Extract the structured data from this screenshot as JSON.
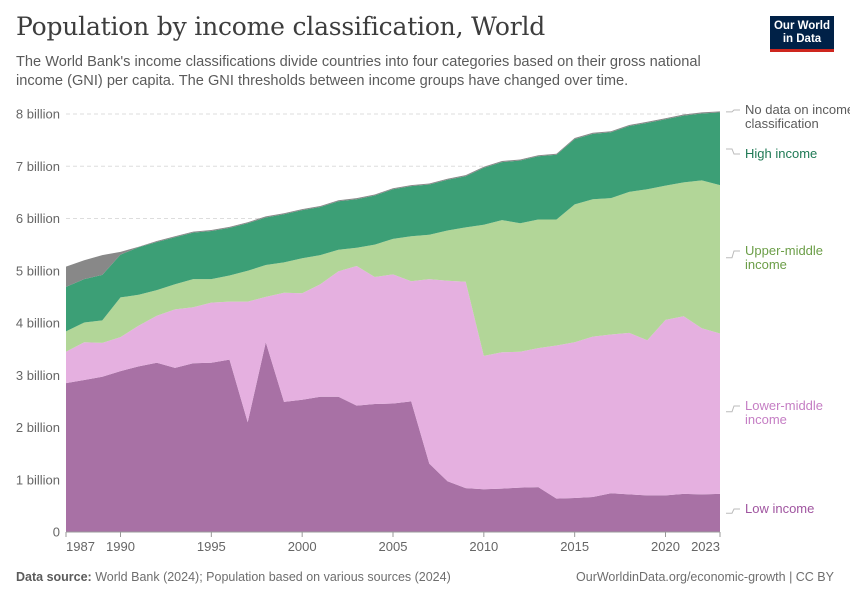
{
  "header": {
    "title": "Population by income classification, World",
    "subtitle": "The World Bank's income classifications divide countries into four categories based on their gross national income (GNI) per capita. The GNI thresholds between income groups have changed over time.",
    "logo_line1": "Our World",
    "logo_line2": "in Data"
  },
  "footer": {
    "source_label": "Data source:",
    "source_text": "World Bank (2024); Population based on various sources (2024)",
    "url": "OurWorldinData.org/economic-growth | CC BY"
  },
  "colors": {
    "low": "#a871a5",
    "lower_middle": "#e5b0e0",
    "upper_middle": "#b2d698",
    "high": "#3c9f76",
    "no_data": "#888888",
    "low_label": "#a055a0",
    "lower_middle_label": "#c57ec4",
    "upper_middle_label": "#6c9e48",
    "high_label": "#1f7a55",
    "no_data_label": "#5b5b5b"
  },
  "chart_data": {
    "type": "area",
    "stacked": true,
    "title": "Population by income classification, World",
    "ylabel": "",
    "xlabel": "",
    "x": [
      1987,
      1988,
      1989,
      1990,
      1991,
      1992,
      1993,
      1994,
      1995,
      1996,
      1997,
      1998,
      1999,
      2000,
      2001,
      2002,
      2003,
      2004,
      2005,
      2006,
      2007,
      2008,
      2009,
      2010,
      2011,
      2012,
      2013,
      2014,
      2015,
      2016,
      2017,
      2018,
      2019,
      2020,
      2021,
      2022,
      2023
    ],
    "xlim": [
      1987,
      2023
    ],
    "ylim": [
      0,
      8000000000
    ],
    "y_ticks": [
      0,
      1000000000,
      2000000000,
      3000000000,
      4000000000,
      5000000000,
      6000000000,
      7000000000,
      8000000000
    ],
    "y_tick_labels": [
      "0",
      "1 billion",
      "2 billion",
      "3 billion",
      "4 billion",
      "5 billion",
      "6 billion",
      "7 billion",
      "8 billion"
    ],
    "x_tick_labels": [
      "1987",
      "1990",
      "1995",
      "2000",
      "2005",
      "2010",
      "2015",
      "2020",
      "2023"
    ],
    "x_ticks": [
      1987,
      1990,
      1995,
      2000,
      2005,
      2010,
      2015,
      2020,
      2023
    ],
    "grid": true,
    "series": [
      {
        "name": "Low income",
        "color_key": "low",
        "values": [
          2850000000.0,
          2910000000.0,
          2970000000.0,
          3080000000.0,
          3170000000.0,
          3240000000.0,
          3140000000.0,
          3230000000.0,
          3240000000.0,
          3300000000.0,
          2100000000.0,
          3630000000.0,
          2490000000.0,
          2530000000.0,
          2590000000.0,
          2590000000.0,
          2420000000.0,
          2450000000.0,
          2460000000.0,
          2500000000.0,
          1310000000.0,
          970000000.0,
          840000000.0,
          820000000.0,
          830000000.0,
          850000000.0,
          860000000.0,
          640000000.0,
          650000000.0,
          670000000.0,
          740000000.0,
          720000000.0,
          700000000.0,
          700000000.0,
          730000000.0,
          720000000.0,
          730000000.0
        ]
      },
      {
        "name": "Lower-middle income",
        "color_key": "lower_middle",
        "values": [
          600000000.0,
          720000000.0,
          650000000.0,
          650000000.0,
          780000000.0,
          900000000.0,
          1120000000.0,
          1070000000.0,
          1150000000.0,
          1110000000.0,
          2310000000.0,
          870000000.0,
          2090000000.0,
          2040000000.0,
          2150000000.0,
          2400000000.0,
          2670000000.0,
          2430000000.0,
          2470000000.0,
          2300000000.0,
          3530000000.0,
          3840000000.0,
          3950000000.0,
          2550000000.0,
          2610000000.0,
          2600000000.0,
          2660000000.0,
          2930000000.0,
          2980000000.0,
          3070000000.0,
          3040000000.0,
          3090000000.0,
          2970000000.0,
          3360000000.0,
          3400000000.0,
          3180000000.0,
          3070000000.0
        ]
      },
      {
        "name": "Upper-middle income",
        "color_key": "upper_middle",
        "values": [
          390000000.0,
          380000000.0,
          430000000.0,
          760000000.0,
          590000000.0,
          490000000.0,
          480000000.0,
          540000000.0,
          450000000.0,
          500000000.0,
          590000000.0,
          610000000.0,
          580000000.0,
          670000000.0,
          560000000.0,
          410000000.0,
          350000000.0,
          620000000.0,
          680000000.0,
          860000000.0,
          850000000.0,
          960000000.0,
          1040000000.0,
          2510000000.0,
          2530000000.0,
          2460000000.0,
          2460000000.0,
          2410000000.0,
          2640000000.0,
          2630000000.0,
          2610000000.0,
          2700000000.0,
          2890000000.0,
          2570000000.0,
          2560000000.0,
          2830000000.0,
          2840000000.0
        ]
      },
      {
        "name": "High income",
        "color_key": "high",
        "values": [
          850000000.0,
          830000000.0,
          870000000.0,
          820000000.0,
          910000000.0,
          920000000.0,
          900000000.0,
          890000000.0,
          920000000.0,
          910000000.0,
          910000000.0,
          910000000.0,
          920000000.0,
          920000000.0,
          920000000.0,
          930000000.0,
          930000000.0,
          940000000.0,
          950000000.0,
          960000000.0,
          960000000.0,
          970000000.0,
          980000000.0,
          1090000000.0,
          1110000000.0,
          1200000000.0,
          1210000000.0,
          1240000000.0,
          1250000000.0,
          1250000000.0,
          1260000000.0,
          1260000000.0,
          1270000000.0,
          1270000000.0,
          1280000000.0,
          1280000000.0,
          1390000000.0
        ]
      },
      {
        "name": "No data on income classification",
        "color_key": "no_data",
        "values": [
          390000000.0,
          360000000.0,
          380000000.0,
          50000000.0,
          10000000.0,
          20000000.0,
          20000000.0,
          20000000.0,
          20000000.0,
          20000000.0,
          20000000.0,
          20000000.0,
          20000000.0,
          20000000.0,
          20000000.0,
          20000000.0,
          20000000.0,
          20000000.0,
          20000000.0,
          20000000.0,
          20000000.0,
          20000000.0,
          20000000.0,
          20000000.0,
          20000000.0,
          20000000.0,
          20000000.0,
          20000000.0,
          20000000.0,
          20000000.0,
          20000000.0,
          20000000.0,
          20000000.0,
          20000000.0,
          20000000.0,
          20000000.0,
          20000000.0
        ]
      }
    ],
    "legend": [
      {
        "label_line1": "No data on income",
        "label_line2": "classification",
        "color_key": "no_data_label",
        "anchor_value": 8040000000.0
      },
      {
        "label_line1": "High income",
        "label_line2": "",
        "color_key": "high_label",
        "anchor_value": 7330000000.0
      },
      {
        "label_line1": "Upper-middle",
        "label_line2": "income",
        "color_key": "upper_middle_label",
        "anchor_value": 5250000000.0
      },
      {
        "label_line1": "Lower-middle",
        "label_line2": "income",
        "color_key": "lower_middle_label",
        "anchor_value": 2300000000.0
      },
      {
        "label_line1": "Low income",
        "label_line2": "",
        "color_key": "low_label",
        "anchor_value": 360000000.0
      }
    ]
  }
}
